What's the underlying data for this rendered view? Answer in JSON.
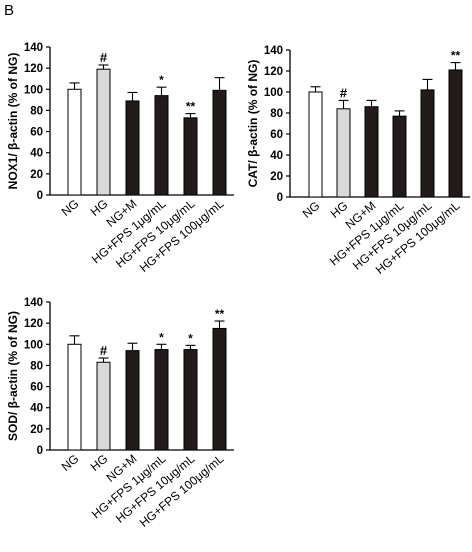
{
  "panel_label": "B",
  "chart_data": [
    {
      "type": "bar",
      "ylabel": "NOX1/ β-actin (% of NG)",
      "ylim": [
        0,
        140
      ],
      "yticks": [
        0,
        20,
        40,
        60,
        80,
        100,
        120,
        140
      ],
      "categories": [
        "NG",
        "HG",
        "NG+M",
        "HG+FPS 1μg/mL",
        "HG+FPS 10μg/mL",
        "HG+FPS 100μg/mL"
      ],
      "values": [
        100,
        119,
        89,
        94,
        73,
        99
      ],
      "errors": [
        6,
        4,
        8,
        8,
        4,
        12
      ],
      "annotations": [
        "",
        "#",
        "",
        "*",
        "**",
        ""
      ],
      "colors": [
        "#ffffff",
        "#d9d9d9",
        "#231a1a",
        "#231a1a",
        "#231a1a",
        "#231a1a"
      ]
    },
    {
      "type": "bar",
      "ylabel": "CAT/ β-actin (% of NG)",
      "ylim": [
        0,
        140
      ],
      "yticks": [
        0,
        20,
        40,
        60,
        80,
        100,
        120,
        140
      ],
      "categories": [
        "NG",
        "HG",
        "NG+M",
        "HG+FPS 1μg/mL",
        "HG+FPS 10μg/mL",
        "HG+FPS 100μg/mL"
      ],
      "values": [
        100,
        84,
        86,
        77,
        102,
        121
      ],
      "errors": [
        5,
        8,
        6,
        5,
        10,
        7
      ],
      "annotations": [
        "",
        "#",
        "",
        "",
        "",
        "**"
      ],
      "colors": [
        "#ffffff",
        "#d9d9d9",
        "#231a1a",
        "#231a1a",
        "#231a1a",
        "#231a1a"
      ]
    },
    {
      "type": "bar",
      "ylabel": "SOD/ β-actin (% of NG)",
      "ylim": [
        0,
        140
      ],
      "yticks": [
        0,
        20,
        40,
        60,
        80,
        100,
        120,
        140
      ],
      "categories": [
        "NG",
        "HG",
        "NG+M",
        "HG+FPS 1μg/mL",
        "HG+FPS 10μg/mL",
        "HG+FPS 100μg/mL"
      ],
      "values": [
        100,
        83,
        94,
        95,
        95,
        115
      ],
      "errors": [
        8,
        4,
        7,
        5,
        4,
        7
      ],
      "annotations": [
        "",
        "#",
        "",
        "*",
        "*",
        "**"
      ],
      "colors": [
        "#ffffff",
        "#d9d9d9",
        "#231a1a",
        "#231a1a",
        "#231a1a",
        "#231a1a"
      ]
    }
  ]
}
